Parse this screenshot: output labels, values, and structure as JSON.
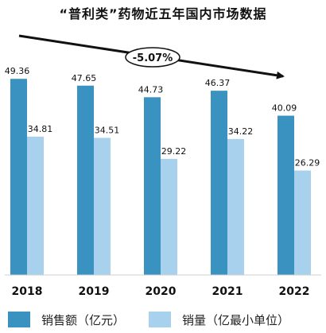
{
  "chart_data": {
    "type": "bar",
    "title": "“普利类”药物近五年国内市场数据",
    "categories": [
      "2018",
      "2019",
      "2020",
      "2021",
      "2022"
    ],
    "series": [
      {
        "name": "销售额（亿元）",
        "values": [
          49.36,
          47.65,
          44.73,
          46.37,
          40.09
        ],
        "color": "#3a92c0"
      },
      {
        "name": "销量（亿最小单位）",
        "values": [
          34.81,
          34.51,
          29.22,
          34.22,
          26.29
        ],
        "color": "#a8d1ee"
      }
    ],
    "value_labels": [
      [
        "49.36",
        "47.65",
        "44.73",
        "46.37",
        "40.09"
      ],
      [
        "34.81",
        "34.51",
        "29.22",
        "34.22",
        "26.29"
      ]
    ],
    "ylim": [
      0,
      60
    ],
    "grid": false,
    "legend_position": "bottom-left",
    "annotation": {
      "label": "-5.07%"
    }
  }
}
